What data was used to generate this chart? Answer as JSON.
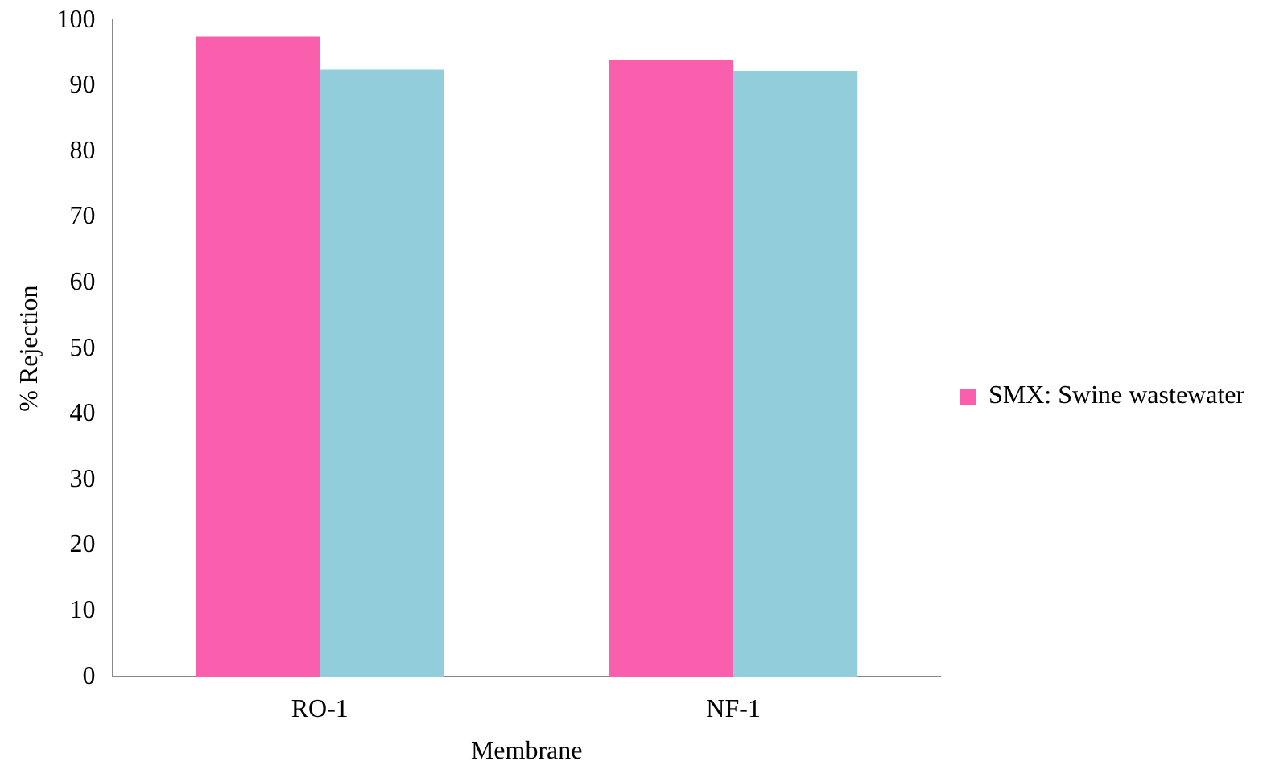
{
  "chart_data": {
    "type": "bar",
    "xlabel": "Membrane",
    "ylabel": "% Rejection",
    "categories": [
      "RO-1",
      "NF-1"
    ],
    "series": [
      {
        "name": "SMX: Swine wastewater",
        "color": "#f95fac",
        "values": [
          97.5,
          94
        ]
      },
      {
        "color": "#92cddc",
        "values": [
          92.5,
          92.3
        ]
      }
    ],
    "ylim": [
      0,
      100
    ],
    "yticks": [
      0,
      10,
      20,
      30,
      40,
      50,
      60,
      70,
      80,
      90,
      100
    ],
    "grid": false,
    "legend": "right"
  }
}
